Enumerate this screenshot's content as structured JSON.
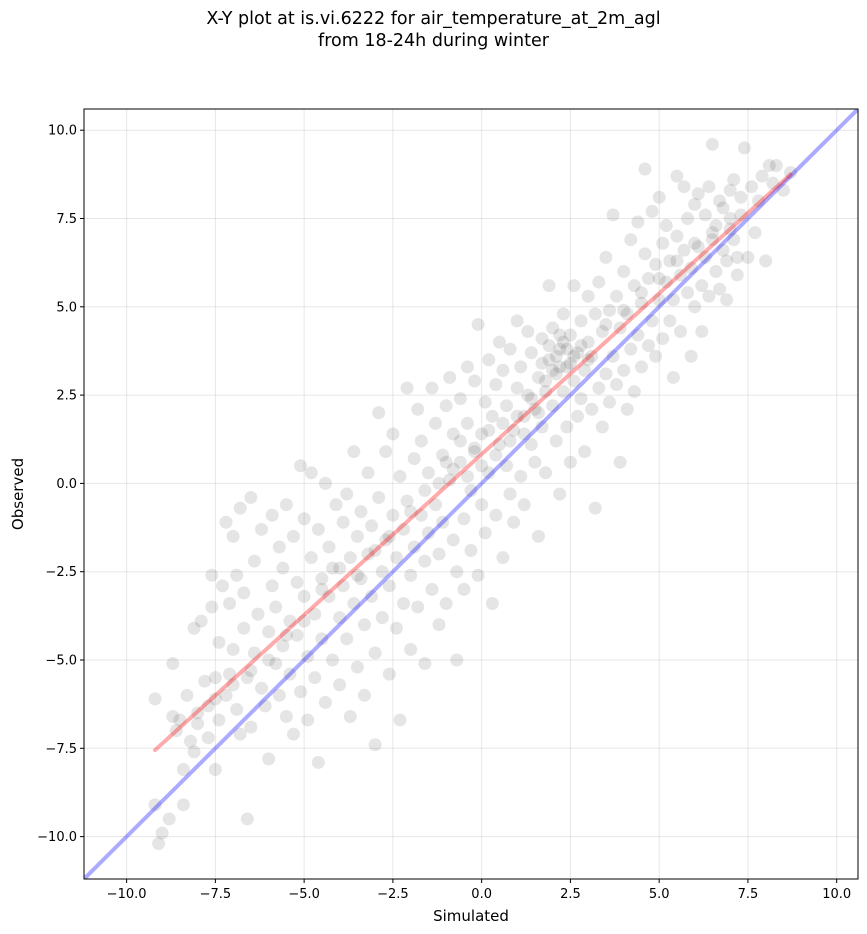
{
  "chart_data": {
    "type": "scatter",
    "title_line1": "X-Y plot at is.vi.6222 for air_temperature_at_2m_agl",
    "title_line2": "from 18-24h during winter",
    "xlabel": "Simulated",
    "ylabel": "Observed",
    "xlim": [
      -11.2,
      10.6
    ],
    "ylim": [
      -11.2,
      10.6
    ],
    "x_ticks": [
      -10.0,
      -7.5,
      -5.0,
      -2.5,
      0.0,
      2.5,
      5.0,
      7.5,
      10.0
    ],
    "y_ticks": [
      -10.0,
      -7.5,
      -5.0,
      -2.5,
      0.0,
      2.5,
      5.0,
      7.5,
      10.0
    ],
    "x_tick_labels": [
      "−10.0",
      "−7.5",
      "−5.0",
      "−2.5",
      "0.0",
      "2.5",
      "5.0",
      "7.5",
      "10.0"
    ],
    "y_tick_labels": [
      "−10.0",
      "−7.5",
      "−5.0",
      "−2.5",
      "0.0",
      "2.5",
      "5.0",
      "7.5",
      "10.0"
    ],
    "grid": true,
    "lines": [
      {
        "kind": "one-to-one",
        "color": "#0000ff",
        "x": [
          -11.2,
          10.6
        ],
        "y": [
          -11.2,
          10.6
        ]
      },
      {
        "kind": "fit",
        "color": "#ff0000",
        "x": [
          -9.2,
          8.7
        ],
        "y": [
          -7.55,
          8.75
        ]
      }
    ],
    "marker_color": "#000000",
    "points": [
      [
        -9.2,
        -6.1
      ],
      [
        -9.2,
        -9.1
      ],
      [
        -9.1,
        -10.2
      ],
      [
        -9.0,
        -9.9
      ],
      [
        -8.8,
        -9.5
      ],
      [
        -8.7,
        -6.6
      ],
      [
        -8.7,
        -5.1
      ],
      [
        -8.6,
        -7.0
      ],
      [
        -8.5,
        -6.7
      ],
      [
        -8.4,
        -8.1
      ],
      [
        -8.4,
        -9.1
      ],
      [
        -8.3,
        -6.0
      ],
      [
        -8.2,
        -7.3
      ],
      [
        -8.1,
        -4.1
      ],
      [
        -8.1,
        -7.6
      ],
      [
        -8.0,
        -6.5
      ],
      [
        -7.9,
        -3.9
      ],
      [
        -7.8,
        -5.6
      ],
      [
        -7.7,
        -6.3
      ],
      [
        -7.7,
        -7.2
      ],
      [
        -7.6,
        -2.6
      ],
      [
        -7.6,
        -3.5
      ],
      [
        -7.5,
        -5.5
      ],
      [
        -7.5,
        -8.1
      ],
      [
        -7.4,
        -6.7
      ],
      [
        -7.4,
        -4.5
      ],
      [
        -7.3,
        -2.9
      ],
      [
        -7.2,
        -1.1
      ],
      [
        -7.2,
        -6.0
      ],
      [
        -7.1,
        -3.4
      ],
      [
        -7.1,
        -5.4
      ],
      [
        -7.0,
        -1.5
      ],
      [
        -7.0,
        -4.7
      ],
      [
        -6.9,
        -6.4
      ],
      [
        -6.9,
        -2.6
      ],
      [
        -6.8,
        -7.1
      ],
      [
        -6.8,
        -0.7
      ],
      [
        -6.7,
        -4.1
      ],
      [
        -6.7,
        -3.1
      ],
      [
        -6.6,
        -5.5
      ],
      [
        -6.6,
        -9.5
      ],
      [
        -6.5,
        -0.4
      ],
      [
        -6.5,
        -6.9
      ],
      [
        -6.4,
        -2.2
      ],
      [
        -6.4,
        -4.8
      ],
      [
        -6.3,
        -3.7
      ],
      [
        -6.2,
        -5.8
      ],
      [
        -6.2,
        -1.3
      ],
      [
        -6.1,
        -6.3
      ],
      [
        -6.0,
        -4.2
      ],
      [
        -6.0,
        -7.8
      ],
      [
        -5.9,
        -2.9
      ],
      [
        -5.9,
        -0.9
      ],
      [
        -5.8,
        -5.1
      ],
      [
        -5.8,
        -3.5
      ],
      [
        -5.7,
        -6.0
      ],
      [
        -5.7,
        -1.8
      ],
      [
        -5.6,
        -4.6
      ],
      [
        -5.6,
        -2.4
      ],
      [
        -5.5,
        -6.6
      ],
      [
        -5.5,
        -0.6
      ],
      [
        -5.4,
        -3.9
      ],
      [
        -5.4,
        -5.4
      ],
      [
        -5.3,
        -1.5
      ],
      [
        -5.3,
        -7.1
      ],
      [
        -5.2,
        -2.8
      ],
      [
        -5.2,
        -4.3
      ],
      [
        -5.1,
        0.5
      ],
      [
        -5.1,
        -5.9
      ],
      [
        -5.0,
        -3.2
      ],
      [
        -5.0,
        -1.0
      ],
      [
        -4.9,
        -4.9
      ],
      [
        -4.9,
        -6.7
      ],
      [
        -4.8,
        -2.1
      ],
      [
        -4.8,
        0.3
      ],
      [
        -4.7,
        -3.7
      ],
      [
        -4.7,
        -5.5
      ],
      [
        -4.6,
        -7.9
      ],
      [
        -4.6,
        -1.3
      ],
      [
        -4.5,
        -2.7
      ],
      [
        -4.5,
        -4.4
      ],
      [
        -4.4,
        -6.2
      ],
      [
        -4.4,
        0.0
      ],
      [
        -4.3,
        -3.2
      ],
      [
        -4.3,
        -1.8
      ],
      [
        -4.2,
        -5.0
      ],
      [
        -4.2,
        -2.4
      ],
      [
        -4.1,
        -0.6
      ],
      [
        -4.0,
        -3.8
      ],
      [
        -4.0,
        -5.7
      ],
      [
        -3.9,
        -1.1
      ],
      [
        -3.9,
        -2.9
      ],
      [
        -3.8,
        -4.4
      ],
      [
        -3.8,
        -0.3
      ],
      [
        -3.7,
        -6.6
      ],
      [
        -3.7,
        -2.1
      ],
      [
        -3.6,
        -3.4
      ],
      [
        -3.6,
        0.9
      ],
      [
        -3.5,
        -5.2
      ],
      [
        -3.5,
        -1.5
      ],
      [
        -3.4,
        -2.7
      ],
      [
        -3.4,
        -0.8
      ],
      [
        -3.3,
        -4.0
      ],
      [
        -3.3,
        -6.0
      ],
      [
        -3.2,
        -2.0
      ],
      [
        -3.2,
        0.3
      ],
      [
        -3.1,
        -3.2
      ],
      [
        -3.1,
        -1.2
      ],
      [
        -3.0,
        -4.8
      ],
      [
        -3.0,
        -7.4
      ],
      [
        -2.9,
        2.0
      ],
      [
        -2.9,
        -0.4
      ],
      [
        -2.8,
        -2.5
      ],
      [
        -2.8,
        -3.8
      ],
      [
        -2.7,
        -1.6
      ],
      [
        -2.7,
        0.9
      ],
      [
        -2.6,
        -5.4
      ],
      [
        -2.6,
        -2.9
      ],
      [
        -2.5,
        -0.9
      ],
      [
        -2.5,
        1.4
      ],
      [
        -2.4,
        -4.1
      ],
      [
        -2.4,
        -2.1
      ],
      [
        -2.3,
        -6.7
      ],
      [
        -2.3,
        0.2
      ],
      [
        -2.2,
        -1.3
      ],
      [
        -2.2,
        -3.4
      ],
      [
        -2.1,
        2.7
      ],
      [
        -2.1,
        -0.5
      ],
      [
        -2.0,
        -2.6
      ],
      [
        -2.0,
        -4.7
      ],
      [
        -1.9,
        0.7
      ],
      [
        -1.9,
        -1.8
      ],
      [
        -1.8,
        2.1
      ],
      [
        -1.8,
        -3.5
      ],
      [
        -1.7,
        -0.9
      ],
      [
        -1.7,
        1.2
      ],
      [
        -1.6,
        -2.2
      ],
      [
        -1.6,
        -5.1
      ],
      [
        -1.5,
        0.3
      ],
      [
        -1.5,
        -1.4
      ],
      [
        -1.4,
        2.7
      ],
      [
        -1.4,
        -3.0
      ],
      [
        -1.3,
        -0.6
      ],
      [
        -1.3,
        1.7
      ],
      [
        -1.2,
        -2.0
      ],
      [
        -1.2,
        -4.0
      ],
      [
        -1.1,
        0.8
      ],
      [
        -1.1,
        -1.1
      ],
      [
        -1.0,
        2.2
      ],
      [
        -1.0,
        -3.4
      ],
      [
        -0.9,
        0.1
      ],
      [
        -0.9,
        3.0
      ],
      [
        -0.8,
        -1.6
      ],
      [
        -0.8,
        1.4
      ],
      [
        -0.7,
        -2.5
      ],
      [
        -0.7,
        -5.0
      ],
      [
        -0.6,
        0.6
      ],
      [
        -0.6,
        2.4
      ],
      [
        -0.5,
        -1.0
      ],
      [
        -0.5,
        -3.0
      ],
      [
        -0.4,
        1.7
      ],
      [
        -0.4,
        3.3
      ],
      [
        -0.3,
        -0.2
      ],
      [
        -0.3,
        -1.9
      ],
      [
        -0.2,
        2.9
      ],
      [
        -0.2,
        0.9
      ],
      [
        -0.1,
        -2.6
      ],
      [
        -0.1,
        4.5
      ],
      [
        0.0,
        1.4
      ],
      [
        0.0,
        -0.6
      ],
      [
        0.1,
        2.3
      ],
      [
        0.1,
        -1.4
      ],
      [
        0.2,
        3.5
      ],
      [
        0.2,
        0.3
      ],
      [
        0.3,
        -3.4
      ],
      [
        0.3,
        1.9
      ],
      [
        0.4,
        2.8
      ],
      [
        0.4,
        -0.9
      ],
      [
        0.5,
        4.0
      ],
      [
        0.5,
        1.1
      ],
      [
        0.6,
        -2.1
      ],
      [
        0.6,
        3.2
      ],
      [
        0.7,
        0.5
      ],
      [
        0.7,
        2.2
      ],
      [
        0.8,
        -0.3
      ],
      [
        0.8,
        3.8
      ],
      [
        0.9,
        1.5
      ],
      [
        0.9,
        -1.1
      ],
      [
        1.0,
        2.7
      ],
      [
        1.0,
        4.6
      ],
      [
        1.1,
        0.2
      ],
      [
        1.1,
        3.3
      ],
      [
        1.2,
        1.9
      ],
      [
        1.2,
        -0.6
      ],
      [
        1.3,
        2.5
      ],
      [
        1.3,
        4.3
      ],
      [
        1.4,
        1.1
      ],
      [
        1.4,
        3.7
      ],
      [
        1.5,
        0.6
      ],
      [
        1.5,
        2.1
      ],
      [
        1.6,
        -1.5
      ],
      [
        1.6,
        3.0
      ],
      [
        1.7,
        4.1
      ],
      [
        1.7,
        1.6
      ],
      [
        1.8,
        2.6
      ],
      [
        1.8,
        0.3
      ],
      [
        1.9,
        3.5
      ],
      [
        1.9,
        5.6
      ],
      [
        2.0,
        2.2
      ],
      [
        2.0,
        4.4
      ],
      [
        2.1,
        1.2
      ],
      [
        2.1,
        3.1
      ],
      [
        2.2,
        -0.3
      ],
      [
        2.2,
        3.8
      ],
      [
        2.3,
        2.6
      ],
      [
        2.3,
        4.8
      ],
      [
        2.4,
        1.6
      ],
      [
        2.4,
        3.3
      ],
      [
        2.5,
        0.6
      ],
      [
        2.5,
        4.2
      ],
      [
        2.6,
        2.9
      ],
      [
        2.6,
        5.6
      ],
      [
        2.7,
        1.9
      ],
      [
        2.7,
        3.7
      ],
      [
        2.8,
        2.4
      ],
      [
        2.8,
        4.6
      ],
      [
        2.9,
        0.9
      ],
      [
        2.9,
        3.2
      ],
      [
        3.0,
        4.0
      ],
      [
        3.0,
        5.3
      ],
      [
        3.1,
        2.1
      ],
      [
        3.1,
        3.6
      ],
      [
        3.2,
        -0.7
      ],
      [
        3.2,
        4.8
      ],
      [
        3.3,
        2.7
      ],
      [
        3.3,
        5.7
      ],
      [
        3.4,
        1.6
      ],
      [
        3.4,
        4.3
      ],
      [
        3.5,
        3.1
      ],
      [
        3.5,
        6.4
      ],
      [
        3.6,
        2.3
      ],
      [
        3.6,
        4.9
      ],
      [
        3.7,
        3.6
      ],
      [
        3.7,
        7.6
      ],
      [
        3.8,
        2.8
      ],
      [
        3.8,
        5.3
      ],
      [
        3.9,
        0.6
      ],
      [
        3.9,
        4.4
      ],
      [
        4.0,
        3.2
      ],
      [
        4.0,
        6.0
      ],
      [
        4.1,
        2.1
      ],
      [
        4.1,
        4.8
      ],
      [
        4.2,
        3.8
      ],
      [
        4.2,
        6.9
      ],
      [
        4.3,
        2.6
      ],
      [
        4.3,
        5.6
      ],
      [
        4.4,
        4.2
      ],
      [
        4.4,
        7.4
      ],
      [
        4.5,
        3.3
      ],
      [
        4.5,
        5.1
      ],
      [
        4.6,
        6.5
      ],
      [
        4.6,
        8.9
      ],
      [
        4.7,
        3.9
      ],
      [
        4.7,
        5.8
      ],
      [
        4.8,
        4.6
      ],
      [
        4.8,
        7.7
      ],
      [
        4.9,
        3.6
      ],
      [
        4.9,
        6.2
      ],
      [
        5.0,
        5.2
      ],
      [
        5.0,
        8.1
      ],
      [
        5.1,
        4.1
      ],
      [
        5.1,
        6.8
      ],
      [
        5.2,
        5.7
      ],
      [
        5.2,
        7.3
      ],
      [
        5.3,
        4.6
      ],
      [
        5.3,
        6.3
      ],
      [
        5.4,
        3.0
      ],
      [
        5.4,
        5.2
      ],
      [
        5.5,
        7.0
      ],
      [
        5.5,
        8.7
      ],
      [
        5.6,
        5.9
      ],
      [
        5.6,
        4.3
      ],
      [
        5.7,
        6.6
      ],
      [
        5.7,
        8.4
      ],
      [
        5.8,
        5.4
      ],
      [
        5.8,
        7.5
      ],
      [
        5.9,
        6.1
      ],
      [
        5.9,
        3.6
      ],
      [
        6.0,
        5.0
      ],
      [
        6.0,
        7.9
      ],
      [
        6.1,
        6.7
      ],
      [
        6.1,
        8.2
      ],
      [
        6.2,
        5.6
      ],
      [
        6.2,
        4.3
      ],
      [
        6.3,
        6.4
      ],
      [
        6.3,
        7.6
      ],
      [
        6.4,
        5.3
      ],
      [
        6.4,
        8.4
      ],
      [
        6.5,
        6.9
      ],
      [
        6.5,
        9.6
      ],
      [
        6.6,
        6.0
      ],
      [
        6.6,
        7.3
      ],
      [
        6.7,
        5.5
      ],
      [
        6.7,
        8.0
      ],
      [
        6.8,
        6.6
      ],
      [
        6.8,
        7.8
      ],
      [
        6.9,
        6.3
      ],
      [
        6.9,
        5.2
      ],
      [
        7.0,
        7.2
      ],
      [
        7.0,
        8.3
      ],
      [
        7.1,
        6.9
      ],
      [
        7.1,
        8.6
      ],
      [
        7.2,
        6.4
      ],
      [
        7.2,
        5.9
      ],
      [
        7.3,
        7.6
      ],
      [
        7.3,
        8.1
      ],
      [
        7.4,
        9.5
      ],
      [
        7.5,
        6.4
      ],
      [
        7.6,
        8.4
      ],
      [
        7.7,
        7.1
      ],
      [
        7.8,
        8.0
      ],
      [
        7.9,
        8.7
      ],
      [
        8.0,
        6.3
      ],
      [
        8.1,
        9.0
      ],
      [
        8.2,
        8.5
      ],
      [
        8.3,
        9.0
      ],
      [
        8.5,
        8.3
      ],
      [
        8.7,
        8.8
      ],
      [
        -1.0,
        0.6
      ],
      [
        -0.6,
        1.2
      ],
      [
        -0.2,
        1.0
      ],
      [
        0.2,
        1.5
      ],
      [
        0.6,
        1.7
      ],
      [
        1.0,
        1.9
      ],
      [
        1.4,
        2.4
      ],
      [
        1.8,
        2.9
      ],
      [
        2.2,
        3.3
      ],
      [
        2.6,
        3.6
      ],
      [
        1.9,
        3.9
      ],
      [
        2.1,
        3.6
      ],
      [
        2.3,
        4.0
      ],
      [
        2.5,
        3.4
      ],
      [
        2.0,
        3.2
      ],
      [
        2.4,
        3.8
      ],
      [
        1.7,
        3.4
      ],
      [
        2.2,
        4.2
      ],
      [
        2.8,
        3.9
      ],
      [
        3.0,
        3.5
      ],
      [
        -2.0,
        -0.8
      ],
      [
        -1.6,
        -0.2
      ],
      [
        -1.2,
        0.0
      ],
      [
        -0.8,
        0.4
      ],
      [
        -3.5,
        -2.6
      ],
      [
        -3.0,
        -1.9
      ],
      [
        -2.6,
        -1.5
      ],
      [
        -4.5,
        -3.0
      ],
      [
        -4.0,
        -2.4
      ],
      [
        -5.5,
        -4.3
      ],
      [
        -5.0,
        -3.9
      ],
      [
        -6.0,
        -5.0
      ],
      [
        -6.5,
        -5.3
      ],
      [
        -7.0,
        -5.7
      ],
      [
        -7.5,
        -6.1
      ],
      [
        -8.0,
        -6.8
      ],
      [
        3.5,
        4.5
      ],
      [
        4.0,
        4.9
      ],
      [
        4.5,
        5.4
      ],
      [
        5.0,
        5.8
      ],
      [
        5.5,
        6.3
      ],
      [
        6.0,
        6.8
      ],
      [
        6.5,
        7.1
      ],
      [
        7.0,
        7.5
      ],
      [
        0.4,
        0.8
      ],
      [
        0.8,
        1.2
      ],
      [
        1.2,
        1.4
      ],
      [
        1.6,
        2.0
      ],
      [
        -0.4,
        0.2
      ],
      [
        0.0,
        0.5
      ]
    ]
  }
}
